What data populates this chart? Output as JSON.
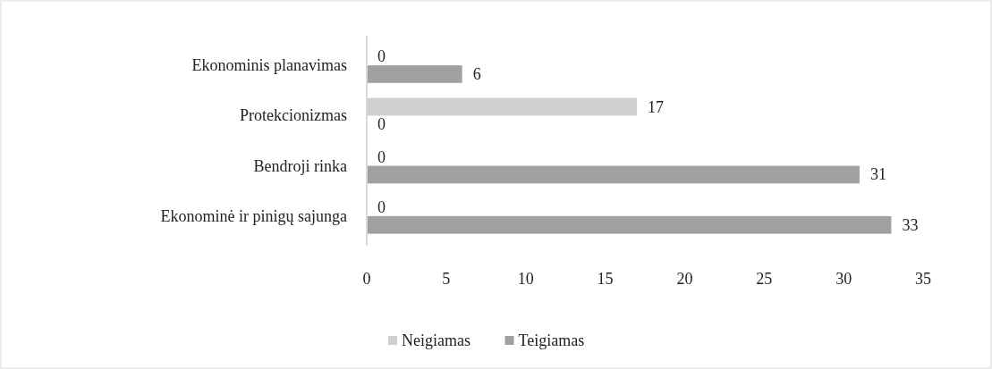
{
  "chart_data": {
    "type": "bar",
    "orientation": "horizontal",
    "categories": [
      "Ekonominis planavimas",
      "Protekcionizmas",
      "Bendroji rinka",
      "Ekonominė ir pinigų sajunga"
    ],
    "series": [
      {
        "name": "Neigiamas",
        "color": "#d0d0d0",
        "values": [
          0,
          17,
          0,
          0
        ]
      },
      {
        "name": "Teigiamas",
        "color": "#a0a0a0",
        "values": [
          6,
          0,
          31,
          33
        ]
      }
    ],
    "xlim": [
      0,
      35
    ],
    "xticks": [
      0,
      5,
      10,
      15,
      20,
      25,
      30,
      35
    ],
    "grid": false,
    "data_labels": true,
    "legend": "bottom"
  }
}
